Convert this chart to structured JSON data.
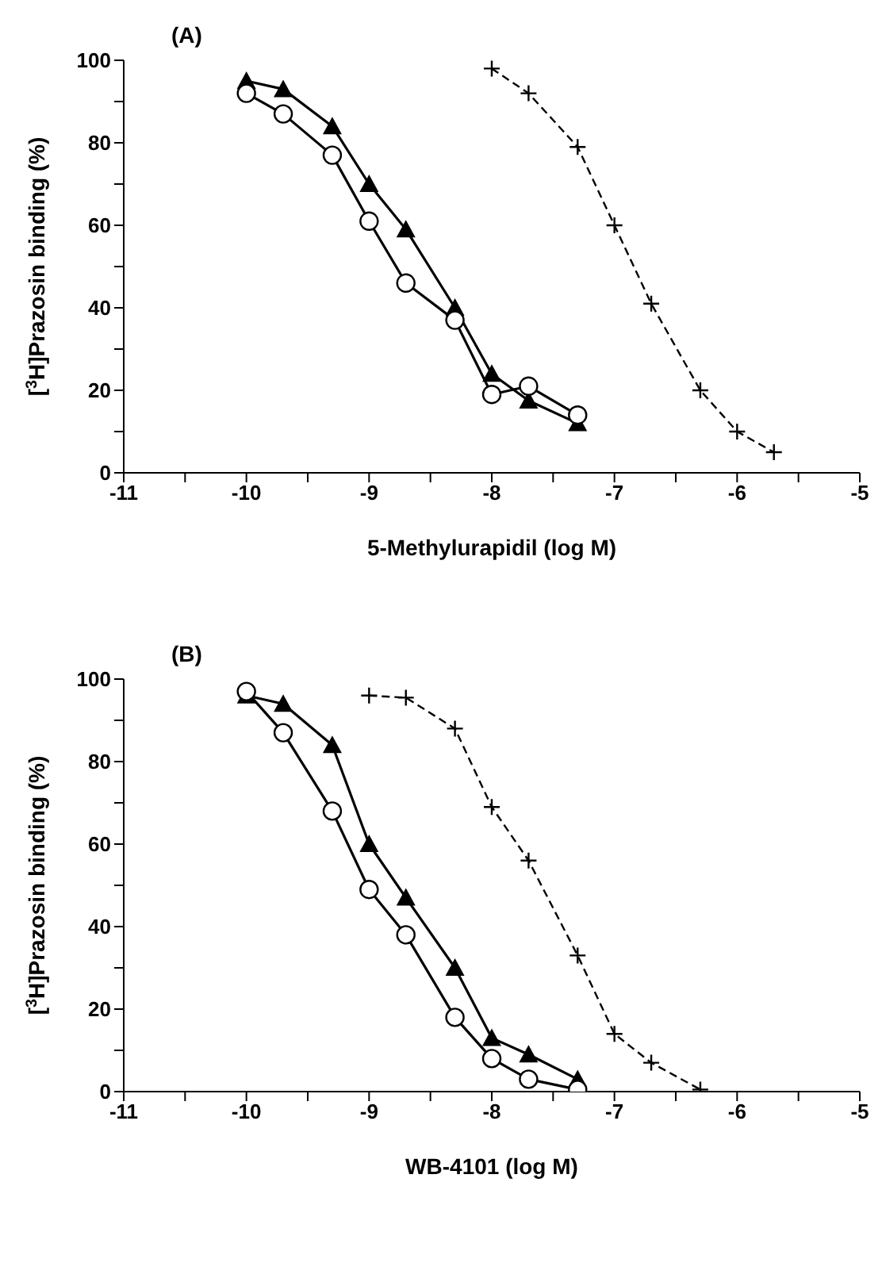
{
  "chart_data": [
    {
      "type": "line",
      "title": "(A)",
      "xlabel": "5-Methylurapidil (log M)",
      "ylabel": "[$^{3}$H]Prazosin binding (%)",
      "xlim": [
        -11,
        -5
      ],
      "xticks": [
        -11,
        {
          "value": -10.5,
          "label": null
        },
        -10,
        {
          "value": -9.5,
          "label": null
        },
        -9,
        {
          "value": -8.5,
          "label": null
        },
        -8,
        {
          "value": -7.5,
          "label": null
        },
        -7,
        {
          "value": -6.5,
          "label": null
        },
        -6,
        {
          "value": -5.5,
          "label": null
        },
        -5
      ],
      "ylim": [
        0,
        100
      ],
      "yticks": [
        0,
        {
          "value": 10,
          "label": null
        },
        20,
        {
          "value": 30,
          "label": null
        },
        40,
        {
          "value": 50,
          "label": null
        },
        60,
        {
          "value": 70,
          "label": null
        },
        80,
        {
          "value": 90,
          "label": null
        },
        100
      ],
      "series": [
        {
          "color": "#000000",
          "marker": "triangle",
          "line_style": "solid",
          "x": [
            -10,
            -9.7,
            -9.3,
            -9.0,
            -8.7,
            -8.3,
            -8.0,
            -7.7,
            -7.3
          ],
          "values": [
            95,
            93,
            84,
            70,
            59,
            40,
            24,
            17.5,
            12
          ]
        },
        {
          "color": "#000000",
          "marker": "circle",
          "line_style": "solid",
          "x": [
            -10,
            -9.7,
            -9.3,
            -9.0,
            -8.7,
            -8.3,
            -8.0,
            -7.7,
            -7.3
          ],
          "values": [
            92,
            87,
            77,
            61,
            46,
            37,
            19,
            21,
            14
          ]
        },
        {
          "color": "#000000",
          "marker": "cross",
          "line_style": "dashed",
          "x": [
            -8.0,
            -7.7,
            -7.3,
            -7.0,
            -6.7,
            -6.3,
            -6.0,
            -5.7
          ],
          "values": [
            98,
            92,
            79,
            60,
            41,
            20,
            10,
            5
          ]
        }
      ]
    },
    {
      "type": "line",
      "title": "(B)",
      "xlabel": "WB-4101 (log M)",
      "ylabel": "[$^{3}$H]Prazosin binding (%)",
      "xlim": [
        -11,
        -5
      ],
      "xticks": [
        -11,
        {
          "value": -10.5,
          "label": null
        },
        -10,
        {
          "value": -9.5,
          "label": null
        },
        -9,
        {
          "value": -8.5,
          "label": null
        },
        -8,
        {
          "value": -7.5,
          "label": null
        },
        -7,
        {
          "value": -6.5,
          "label": null
        },
        -6,
        {
          "value": -5.5,
          "label": null
        },
        -5
      ],
      "ylim": [
        0,
        100
      ],
      "yticks": [
        0,
        {
          "value": 10,
          "label": null
        },
        20,
        {
          "value": 30,
          "label": null
        },
        40,
        {
          "value": 50,
          "label": null
        },
        60,
        {
          "value": 70,
          "label": null
        },
        80,
        {
          "value": 90,
          "label": null
        },
        100
      ],
      "series": [
        {
          "color": "#000000",
          "marker": "triangle",
          "line_style": "solid",
          "x": [
            -10,
            -9.7,
            -9.3,
            -9.0,
            -8.7,
            -8.3,
            -8.0,
            -7.7,
            -7.3
          ],
          "values": [
            96,
            94,
            84,
            60,
            47,
            30,
            13,
            9,
            3
          ]
        },
        {
          "color": "#000000",
          "marker": "circle",
          "line_style": "solid",
          "x": [
            -10,
            -9.7,
            -9.3,
            -9.0,
            -8.7,
            -8.3,
            -8.0,
            -7.7,
            -7.3
          ],
          "values": [
            97,
            87,
            68,
            49,
            38,
            18,
            8,
            3,
            0.5
          ]
        },
        {
          "color": "#000000",
          "marker": "cross",
          "line_style": "dashed",
          "x": [
            -9.0,
            -8.7,
            -8.3,
            -8.0,
            -7.7,
            -7.3,
            -7.0,
            -6.7,
            -6.3
          ],
          "values": [
            96,
            95.5,
            88,
            69,
            56,
            33,
            14,
            7,
            0.5
          ]
        }
      ]
    }
  ]
}
